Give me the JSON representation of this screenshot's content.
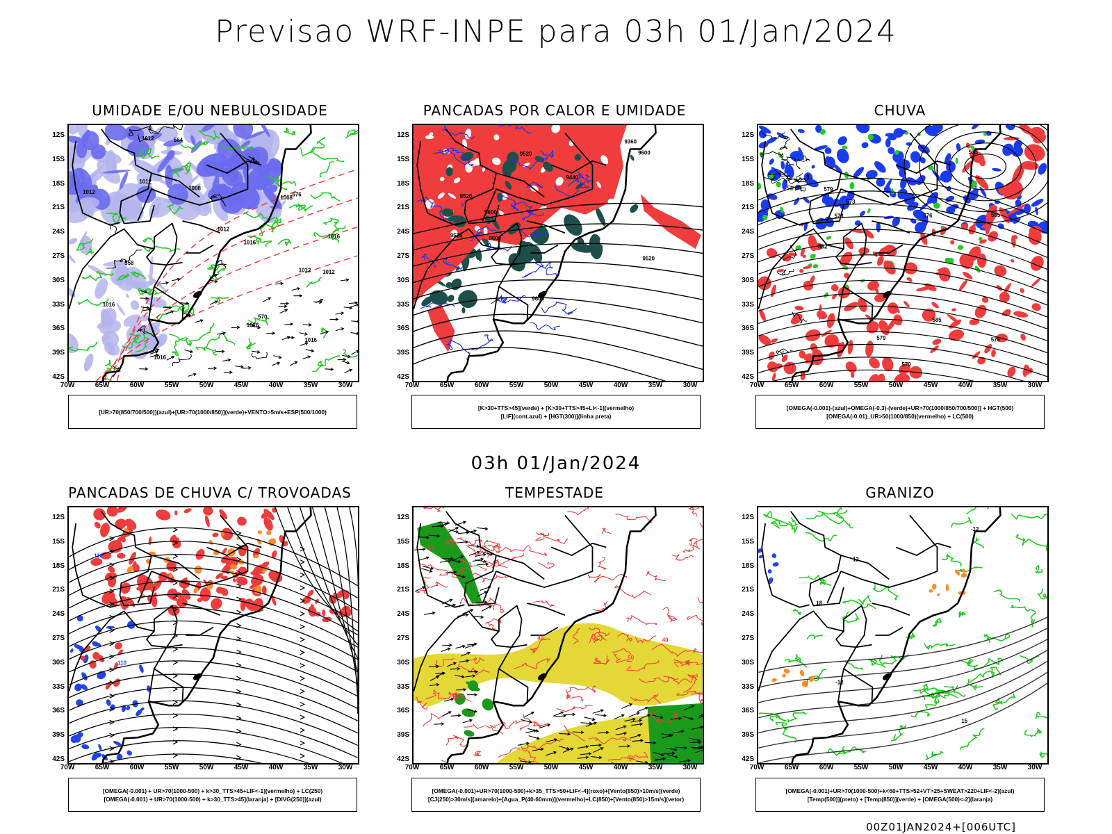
{
  "title": "Previsao WRF-INPE  para 03h 01/Jan/2024",
  "mid_date": "03h 01/Jan/2024",
  "footer": "00Z01JAN2024+[006UTC]",
  "lat_ticks": [
    "12S",
    "15S",
    "18S",
    "21S",
    "24S",
    "27S",
    "30S",
    "33S",
    "36S",
    "39S",
    "42S"
  ],
  "lon_ticks": [
    "70W",
    "65W",
    "60W",
    "55W",
    "50W",
    "45W",
    "40W",
    "35W",
    "30W"
  ],
  "colors": {
    "blue_shade": "#6a6af0",
    "light_blue_shade": "#b4b4ee",
    "green_contour": "#22cc22",
    "red": "#f03c3c",
    "dark_teal": "#1f4f4a",
    "orange": "#ff8c28",
    "yellow": "#e4d836",
    "dark_green": "#1a9a1a",
    "black": "#000000"
  },
  "panels": [
    {
      "id": "umidade",
      "title": "UMIDADE E/OU NEBULOSIDADE",
      "legend": [
        "[UR>70(850/700/500)](azul)+[UR>70(1000/850)](verde)+VENTO>5m/s+ESP(500/1000)"
      ],
      "labels": [
        "1012",
        "1016",
        "1008",
        "1008",
        "1012",
        "1016",
        "1012",
        "1016",
        "1016",
        "1016",
        "1012",
        "1012",
        "1016",
        "1012",
        "564",
        "558",
        "576",
        "570"
      ]
    },
    {
      "id": "pancadas-calor",
      "title": "PANCADAS POR CALOR E UMIDADE",
      "legend": [
        "[K>30+TTS>45](verde) + [K>30+TTS>45+LI<-1](vermelho)",
        "[LIF](cont.azul) + [HGT(300)](linha preta)"
      ],
      "labels": [
        "9600",
        "9600",
        "9600",
        "9520",
        "9600",
        "9520",
        "9440",
        "9360",
        "9520",
        "9520"
      ]
    },
    {
      "id": "chuva",
      "title": "CHUVA",
      "legend": [
        "[OMEGA(-0.001)-(azul)+OMEGA(-0.3)-(verde)+UR>70(1000/850/700/500)] + HGT(500)",
        "[OMEGA(-0.01)_UR>50(1000/850)(vermelho) + LC(500)"
      ],
      "labels": [
        "585",
        "582",
        "585",
        "579",
        "576",
        "579",
        "573",
        "573",
        "570",
        "576",
        "573"
      ]
    },
    {
      "id": "trovoadas",
      "title": "PANCADAS DE CHUVA C/ TROVOADAS",
      "legend": [
        "[OMEGA(-0.001) + UR>70(1000-500) + k>30_TTS>45+LIF<-1](vermelho) + LC(250)",
        "[OMEGA(-0.001) + UR>70(1000-500) + k>30_TTS>45](laranja) + [DIVG(250)](azul)"
      ],
      "labels": [
        "110",
        "110"
      ]
    },
    {
      "id": "tempestade",
      "title": "TEMPESTADE",
      "legend": [
        "[OMEGA(-0.001)+UR>70(1000-500)+k>35_TTS>50+LIF<-4](roxo)+[Vento(850)>10m/s](verde)",
        "[CJ(250)>30m/s](amarelo)+[Agua_P(40-60mm)](vermelho)+LC(850)+[Vento(850)>15m/s](vetor)"
      ],
      "labels": [
        "40",
        "40",
        "50",
        "50",
        "40"
      ]
    },
    {
      "id": "granizo",
      "title": "GRANIZO",
      "legend": [
        "[OMEGA(-0.001)+UR>70(1000-500)+k<60+TTS>52+VT>25+SWEAT>220+LIF<-2](azul)",
        "[Temp(500)](preto) + [Temp(850)](verde) + [OMEGA(500)<-2](laranja)"
      ],
      "labels": [
        "-12",
        "-12",
        "12",
        "15",
        "18"
      ]
    }
  ]
}
